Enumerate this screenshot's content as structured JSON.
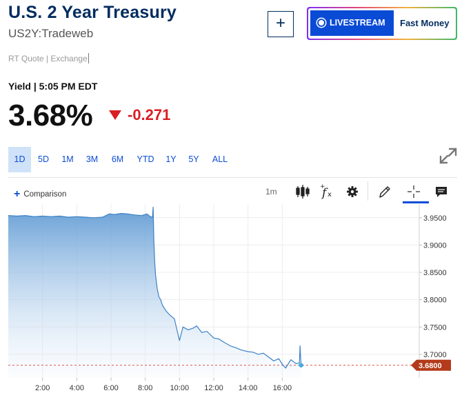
{
  "header": {
    "title": "U.S. 2 Year Treasury",
    "symbol": "US2Y:Tradeweb",
    "rt_quote": "RT Quote | Exchange",
    "add_label": "+",
    "livestream_label": "LIVESTREAM",
    "fast_money_label": "Fast Money"
  },
  "quote": {
    "yield_time": "Yield | 5:05 PM EDT",
    "price": "3.68%",
    "change": "-0.271",
    "direction": "down"
  },
  "colors": {
    "brand_navy": "#002c5f",
    "accent_blue": "#0a4bd6",
    "down_red": "#d71f24",
    "line": "#3b82c4",
    "last_price_tag": "#b33a1a"
  },
  "ranges": [
    "1D",
    "5D",
    "1M",
    "3M",
    "6M",
    "YTD",
    "1Y",
    "5Y",
    "ALL"
  ],
  "active_range": "1D",
  "toolbar": {
    "comparison_label": "Comparison",
    "interval_label": "1m",
    "icons": [
      "candlestick-icon",
      "function-icon",
      "settings-icon",
      "pencil-icon",
      "crosshair-icon",
      "comment-icon"
    ]
  },
  "chart_data": {
    "type": "area",
    "title": "",
    "xlabel": "",
    "ylabel": "",
    "x_ticks": [
      "2:00",
      "4:00",
      "6:00",
      "8:00",
      "10:00",
      "12:00",
      "14:00",
      "16:00"
    ],
    "y_ticks": [
      "3.9500",
      "3.9000",
      "3.8500",
      "3.8000",
      "3.7500",
      "3.7000"
    ],
    "xlim": [
      0,
      24
    ],
    "ylim": [
      3.657,
      3.975
    ],
    "grid": true,
    "last_value_label": "3.6800",
    "last_value": 3.68,
    "series": [
      {
        "x": [
          0,
          0.5,
          1,
          1.5,
          2,
          2.5,
          3,
          3.5,
          4,
          4.5,
          5,
          5.5,
          5.9,
          6.2,
          6.6,
          7,
          7.4,
          7.8,
          8.1,
          8.3,
          8.42,
          8.46,
          8.5,
          8.55,
          8.6,
          8.7,
          8.8,
          8.9,
          9,
          9.2,
          9.4,
          9.7,
          10,
          10.2,
          10.5,
          10.8,
          11,
          11.3,
          11.6,
          12,
          12.3,
          12.6,
          13,
          13.3,
          13.6,
          14,
          14.3,
          14.6,
          14.9,
          15.2,
          15.5,
          15.8,
          16,
          16.2,
          16.5,
          16.8,
          17,
          17.04,
          17.07,
          17.1
        ],
        "y": [
          3.954,
          3.953,
          3.954,
          3.952,
          3.953,
          3.952,
          3.953,
          3.951,
          3.952,
          3.951,
          3.95,
          3.951,
          3.957,
          3.956,
          3.958,
          3.957,
          3.955,
          3.954,
          3.957,
          3.952,
          3.951,
          3.97,
          3.91,
          3.87,
          3.845,
          3.82,
          3.805,
          3.8,
          3.79,
          3.78,
          3.773,
          3.765,
          3.725,
          3.75,
          3.745,
          3.748,
          3.752,
          3.74,
          3.742,
          3.73,
          3.728,
          3.722,
          3.715,
          3.712,
          3.708,
          3.705,
          3.704,
          3.7,
          3.702,
          3.695,
          3.688,
          3.692,
          3.682,
          3.675,
          3.69,
          3.683,
          3.684,
          3.716,
          3.695,
          3.68
        ]
      }
    ]
  }
}
